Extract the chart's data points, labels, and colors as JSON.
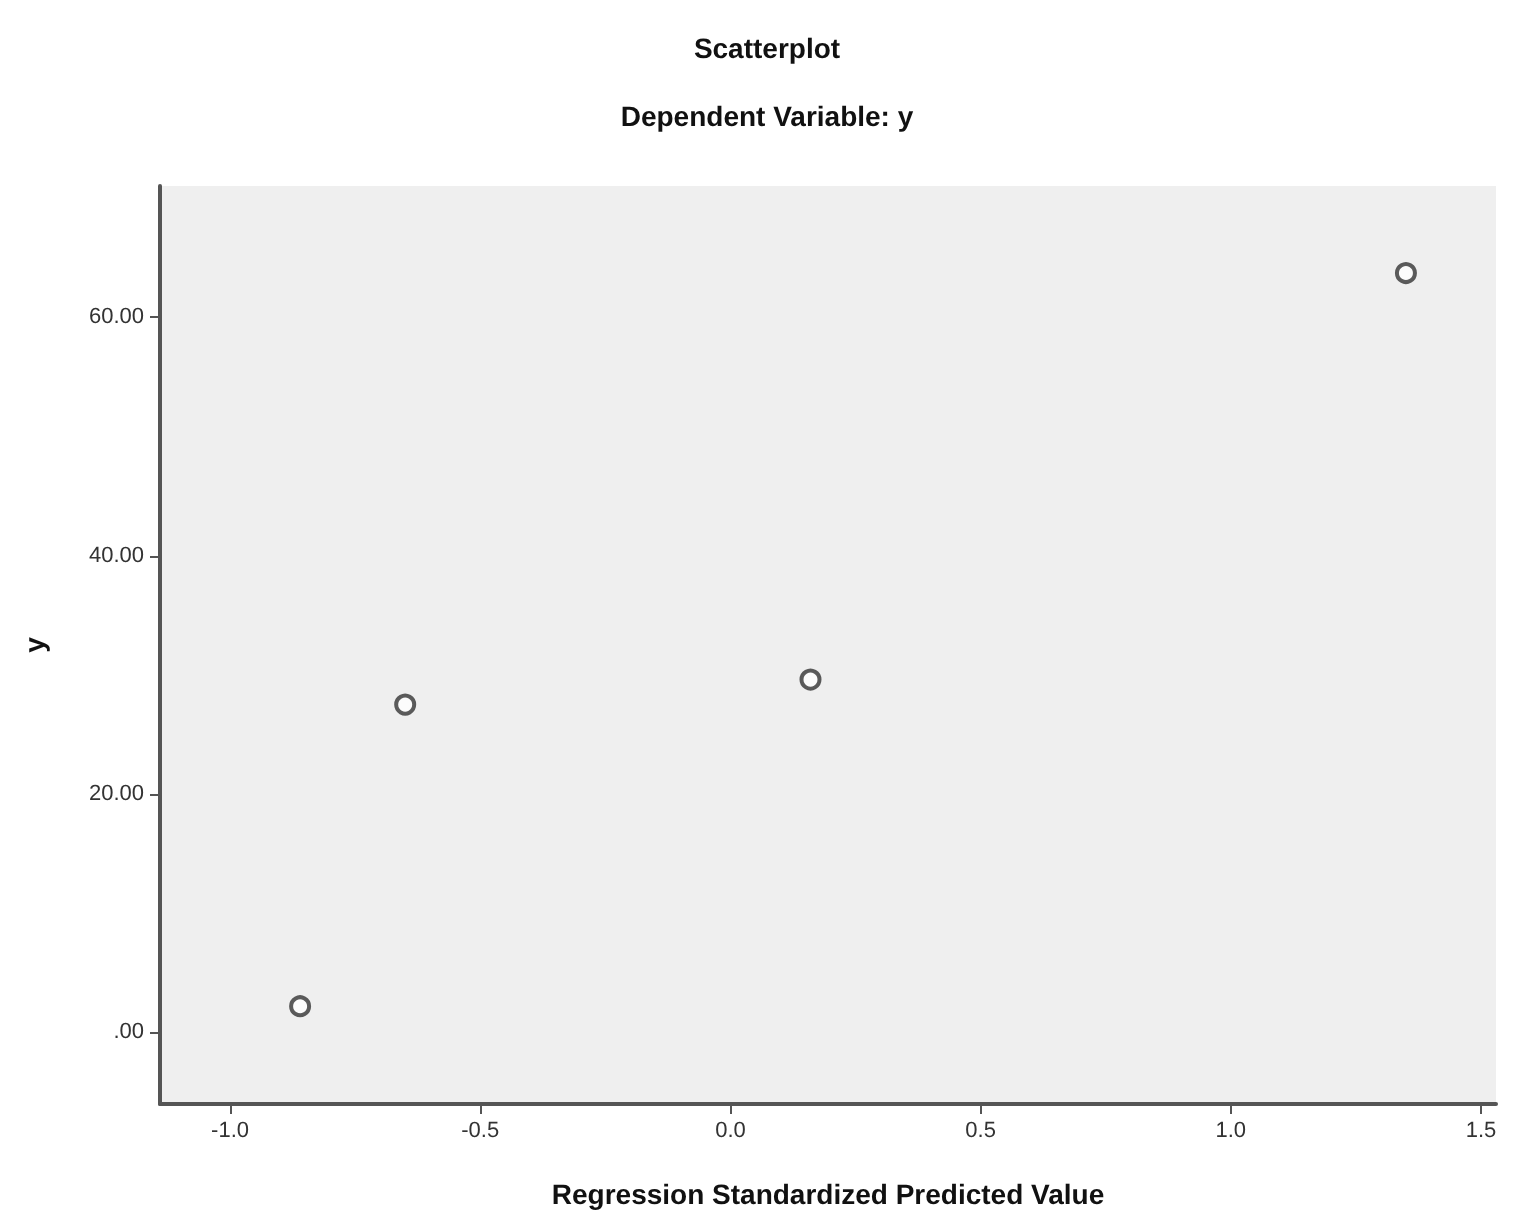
{
  "chart_data": {
    "type": "scatter",
    "title": "Scatterplot",
    "subtitle": "Dependent Variable: y",
    "xlabel": "Regression Standardized Predicted Value",
    "ylabel": "y",
    "x": [
      -0.86,
      -0.65,
      0.16,
      1.35
    ],
    "series": [
      {
        "color": "#333333",
        "values": [
          2.2,
          27.5,
          29.6,
          63.7
        ]
      }
    ],
    "xlim": [
      -1.14,
      1.53
    ],
    "ylim": [
      -6,
      71
    ],
    "xticks": [
      {
        "value": -1,
        "label": "-1.0"
      },
      {
        "value": -0.5,
        "label": "-0.5"
      },
      {
        "value": 0,
        "label": "0.0"
      },
      {
        "value": 0.5,
        "label": "0.5"
      },
      {
        "value": 1,
        "label": "1.0"
      },
      {
        "value": 1.5,
        "label": "1.5"
      }
    ],
    "yticks": [
      {
        "value": 0,
        "label": ".00"
      },
      {
        "value": 20,
        "label": "20.00"
      },
      {
        "value": 40,
        "label": "40.00"
      },
      {
        "value": 60,
        "label": "60.00"
      }
    ],
    "marker": "circle",
    "grid": false
  }
}
